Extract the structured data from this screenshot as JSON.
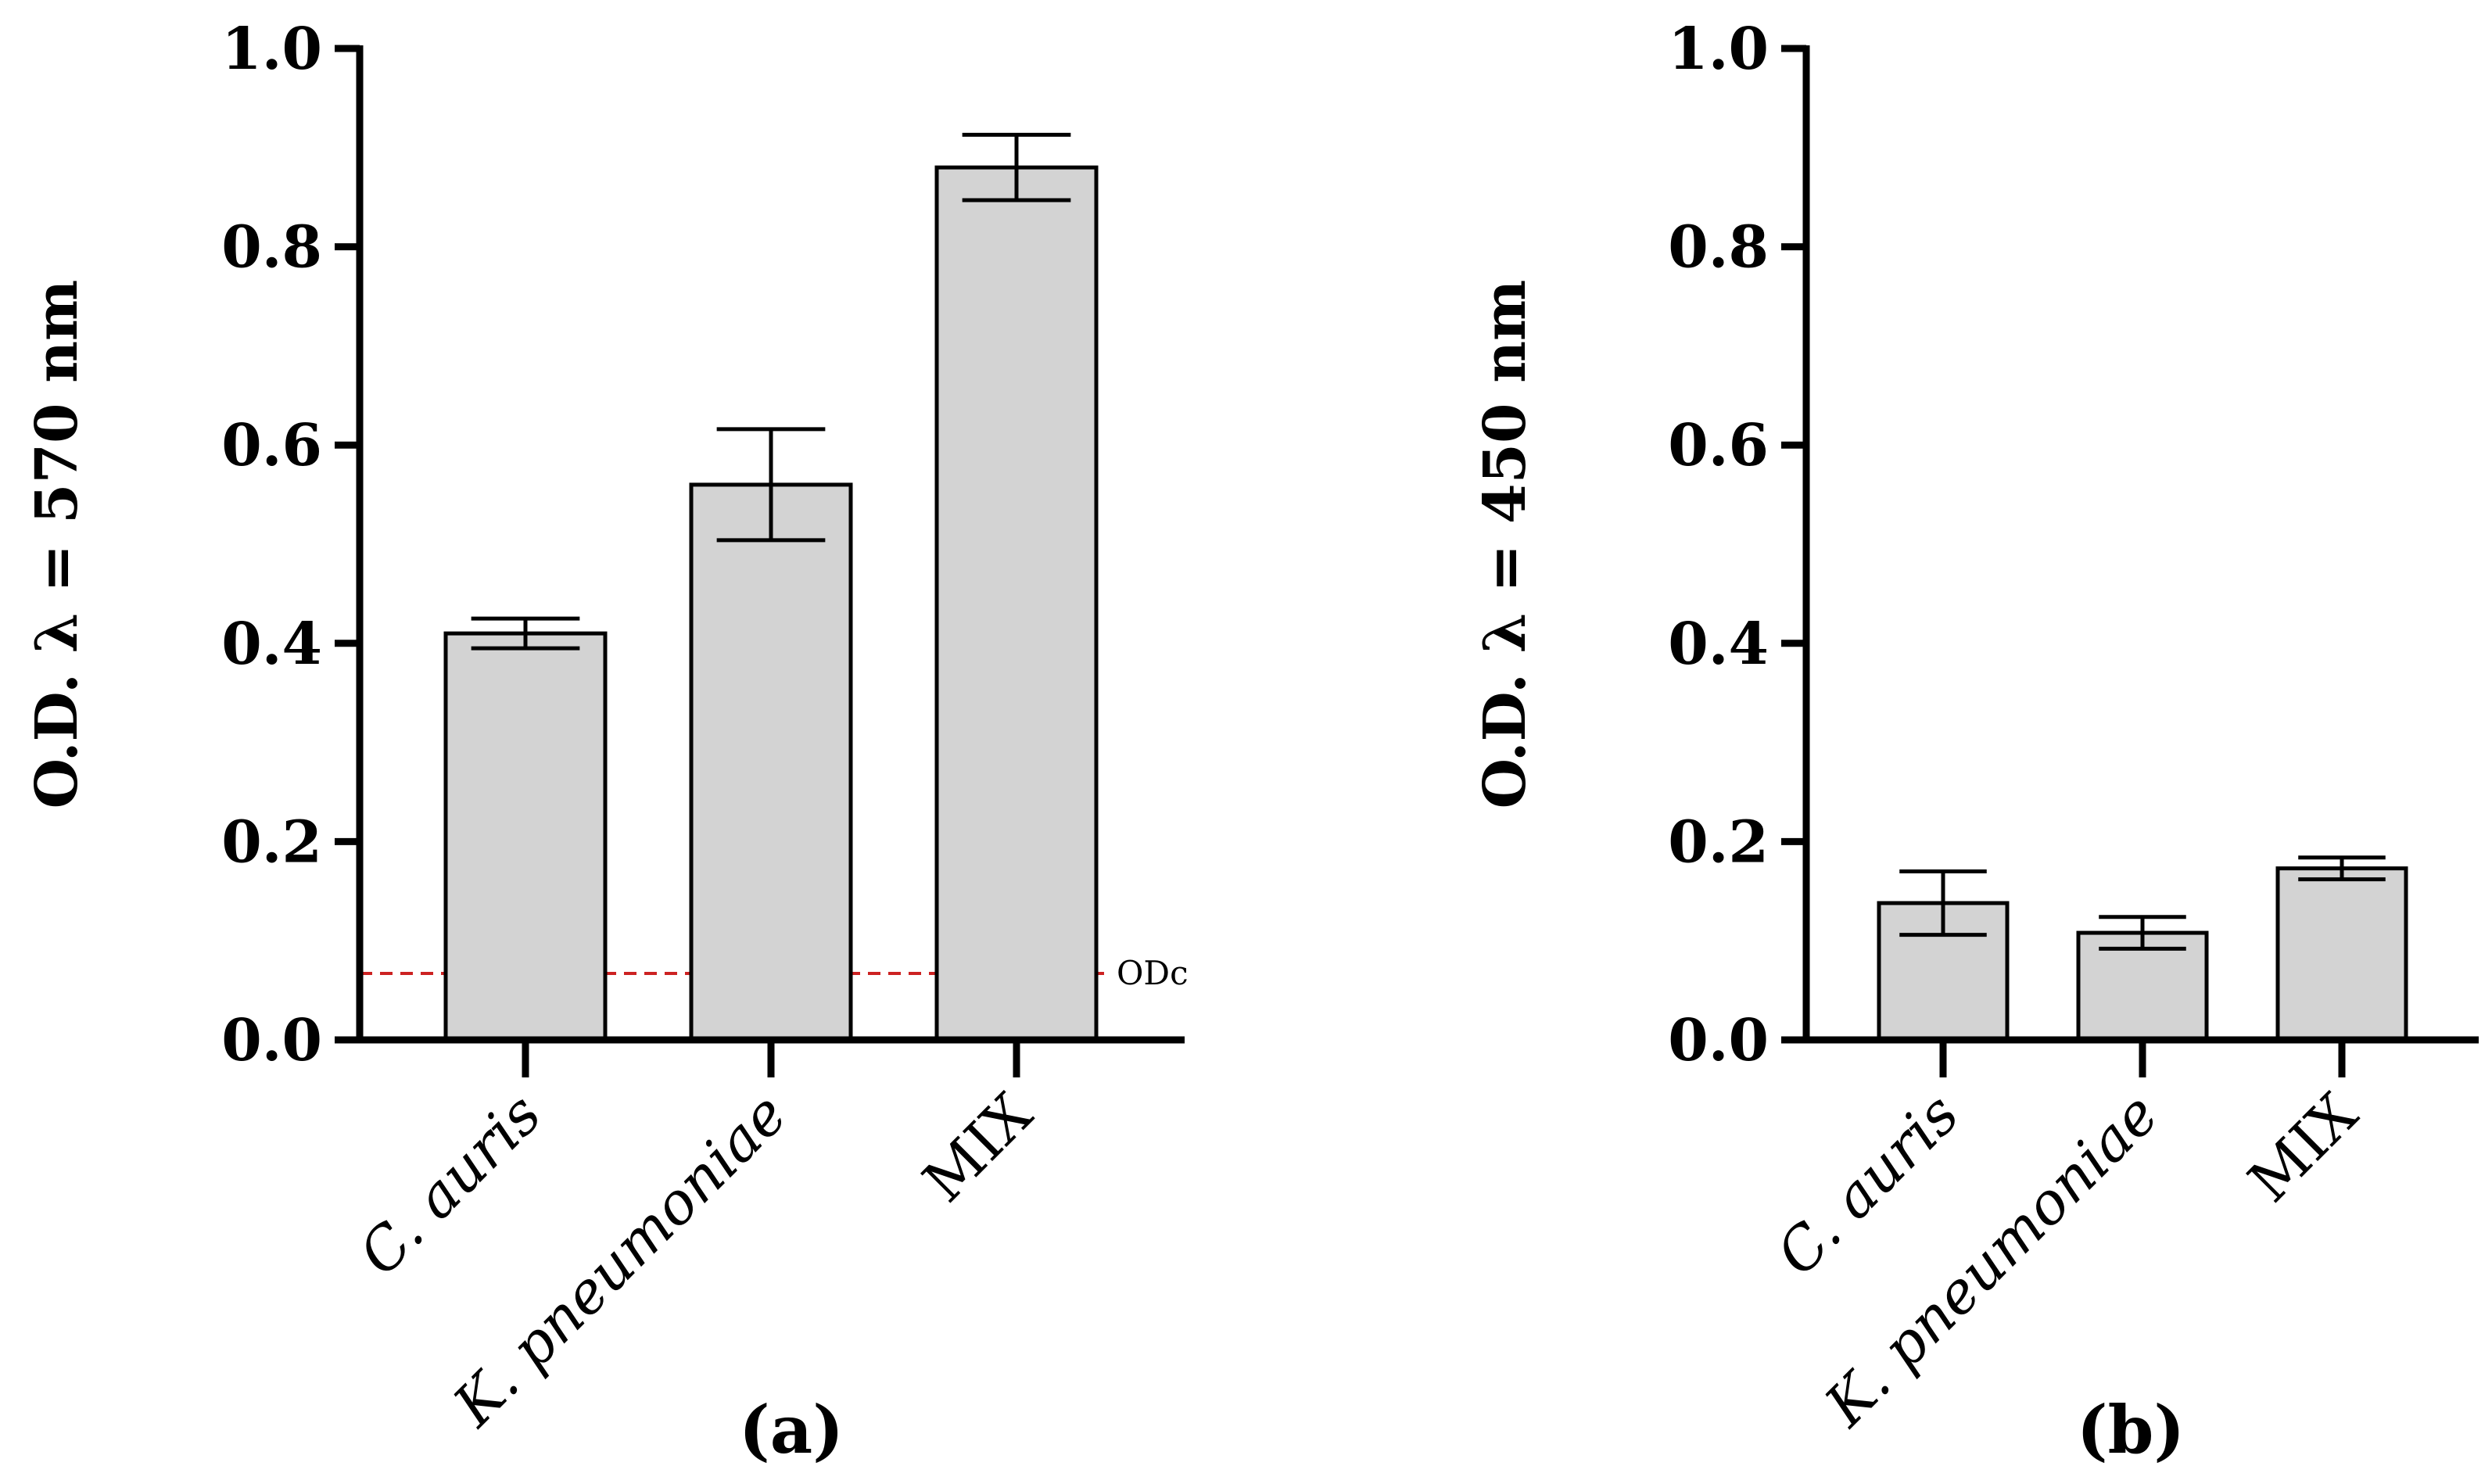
{
  "chart_data": [
    {
      "type": "bar",
      "panel_label": "(a)",
      "ylabel": "O.D. λ = 570 nm",
      "ylim": [
        0.0,
        1.0
      ],
      "yticks": [
        "0.0",
        "0.2",
        "0.4",
        "0.6",
        "0.8",
        "1.0"
      ],
      "ytick_values": [
        0.0,
        0.2,
        0.4,
        0.6,
        0.8,
        1.0
      ],
      "categories": [
        {
          "italic": "C. auris",
          "roman": ""
        },
        {
          "italic": "K. pneumoniae",
          "roman": ""
        },
        {
          "italic": "",
          "roman": "MIX"
        }
      ],
      "values": [
        0.41,
        0.56,
        0.88
      ],
      "errors": [
        0.015,
        0.056,
        0.033
      ],
      "bar_color": "#d3d3d3",
      "reference_line": {
        "value": 0.067,
        "label": "ODc",
        "color": "#cc2222"
      }
    },
    {
      "type": "bar",
      "panel_label": "(b)",
      "ylabel": "O.D. λ = 450 nm",
      "ylim": [
        0.0,
        1.0
      ],
      "yticks": [
        "0.0",
        "0.2",
        "0.4",
        "0.6",
        "0.8",
        "1.0"
      ],
      "ytick_values": [
        0.0,
        0.2,
        0.4,
        0.6,
        0.8,
        1.0
      ],
      "categories": [
        {
          "italic": "C. auris",
          "roman": ""
        },
        {
          "italic": "K. pneumoniae",
          "roman": ""
        },
        {
          "italic": "",
          "roman": "MIX"
        }
      ],
      "values": [
        0.138,
        0.108,
        0.173
      ],
      "errors": [
        0.032,
        0.016,
        0.011
      ],
      "bar_color": "#d3d3d3"
    }
  ]
}
